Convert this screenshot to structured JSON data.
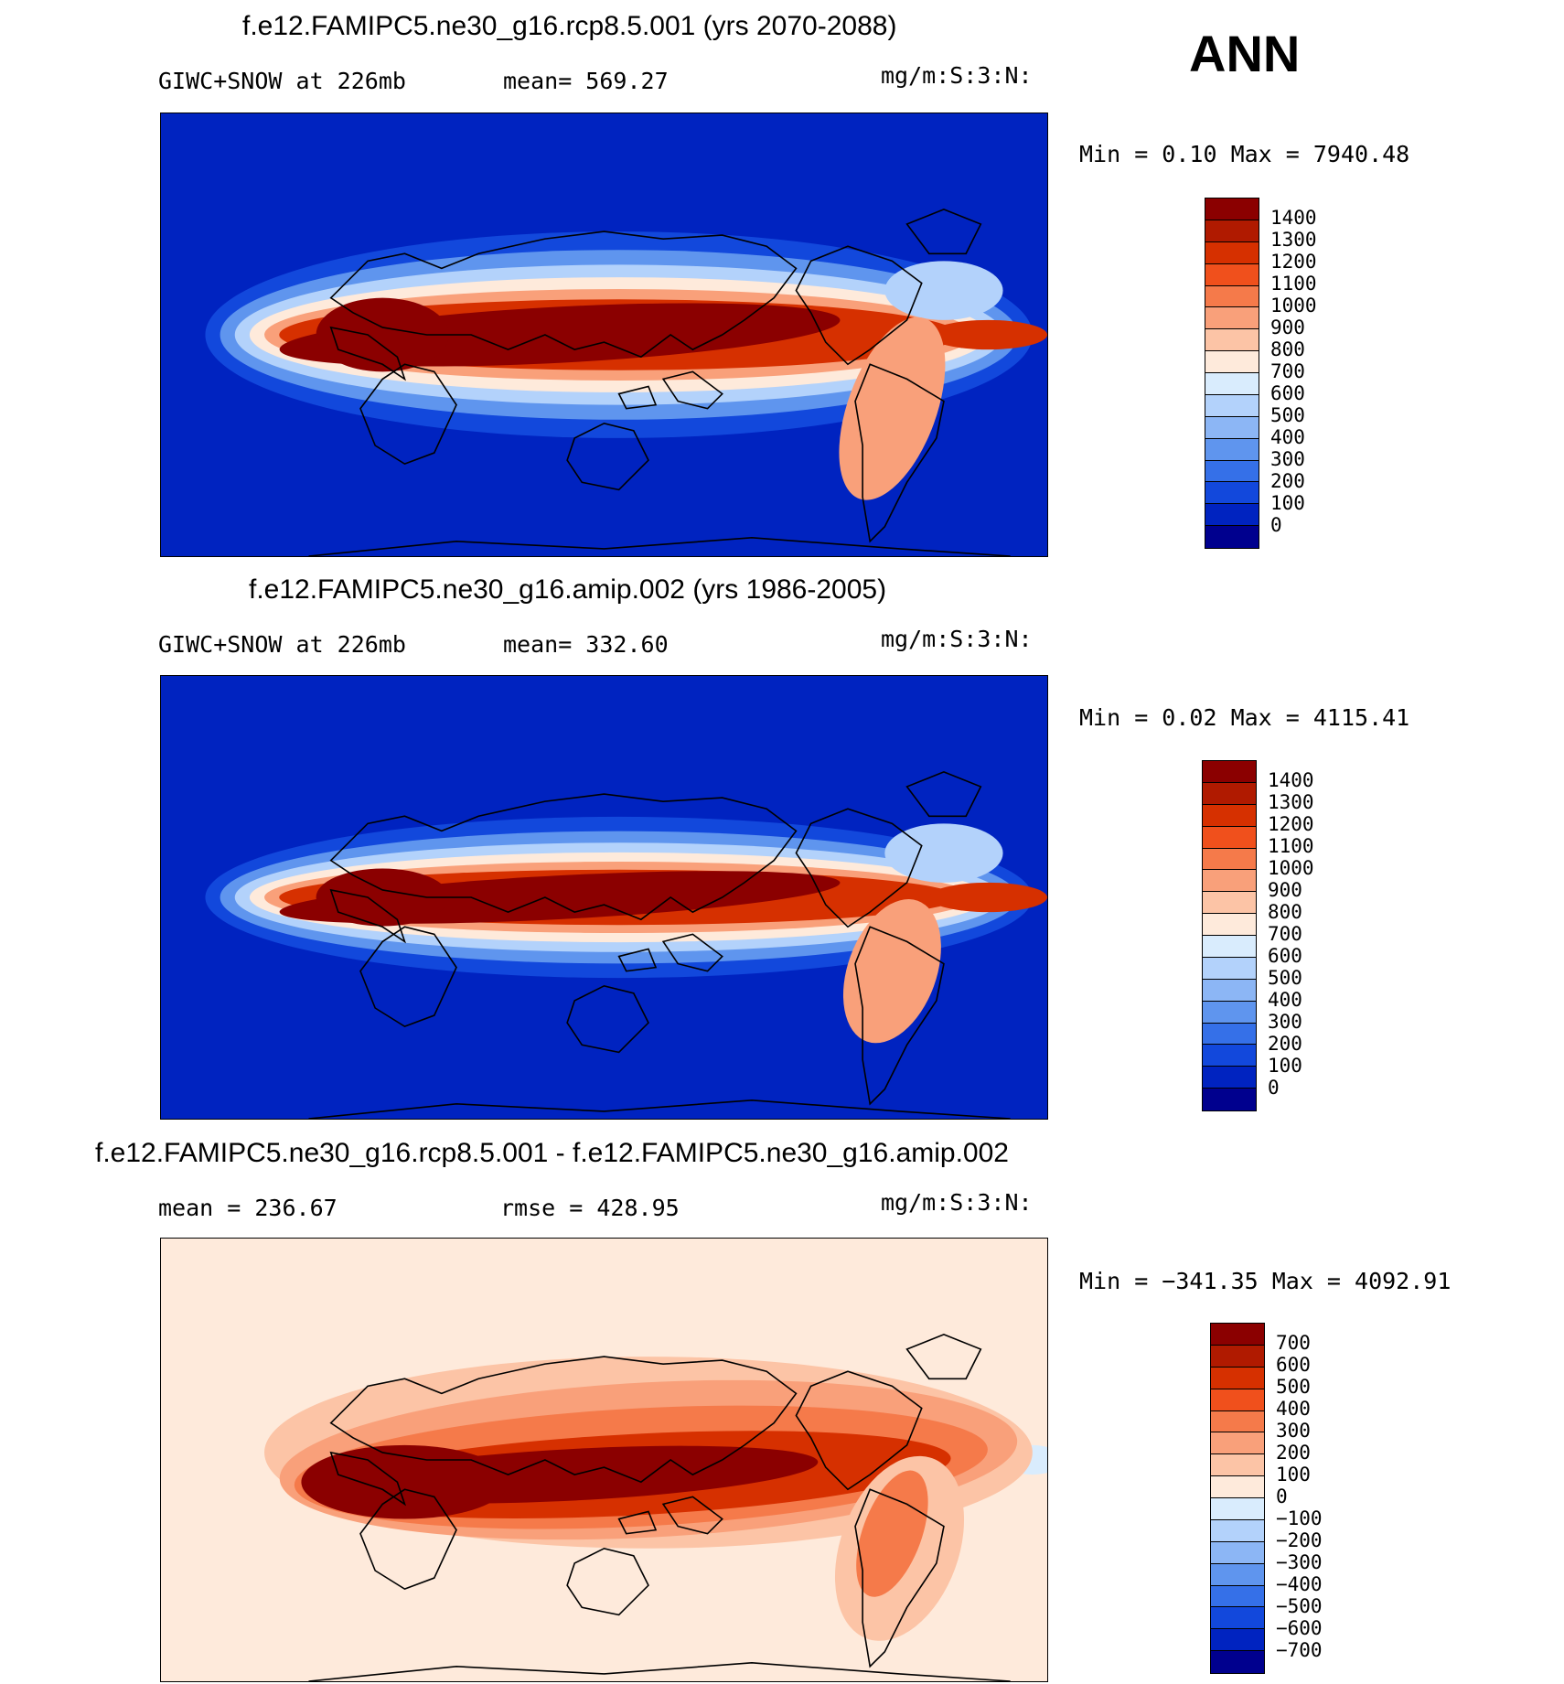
{
  "season_label": "ANN",
  "chart_data": [
    {
      "type": "heatmap",
      "title": "f.e12.FAMIPC5.ne30_g16.rcp8.5.001 (yrs 2070-2088)",
      "left_label": "GIWC+SNOW at 226mb",
      "mean_label": "mean= 569.27",
      "units": "mg/m:S:3:N:",
      "minmax": "Min =    0.10 Max = 7940.48",
      "colorbar_levels": [
        "1400",
        "1300",
        "1200",
        "1100",
        "1000",
        "900",
        "800",
        "700",
        "600",
        "500",
        "400",
        "300",
        "200",
        "100",
        "0"
      ],
      "colorbar_colors": [
        "#8b0000",
        "#b01a00",
        "#d63000",
        "#f0501c",
        "#f57a4a",
        "#f9a07a",
        "#fcc4a6",
        "#feeadb",
        "#d9ecfd",
        "#b3d2fb",
        "#8cb6f5",
        "#5f95ee",
        "#3570e8",
        "#1248dc",
        "#0023c0",
        "#00008e"
      ]
    },
    {
      "type": "heatmap",
      "title": "f.e12.FAMIPC5.ne30_g16.amip.002 (yrs 1986-2005)",
      "left_label": "GIWC+SNOW at 226mb",
      "mean_label": "mean= 332.60",
      "units": "mg/m:S:3:N:",
      "minmax": "Min =    0.02 Max = 4115.41",
      "colorbar_levels": [
        "1400",
        "1300",
        "1200",
        "1100",
        "1000",
        "900",
        "800",
        "700",
        "600",
        "500",
        "400",
        "300",
        "200",
        "100",
        "0"
      ],
      "colorbar_colors": [
        "#8b0000",
        "#b01a00",
        "#d63000",
        "#f0501c",
        "#f57a4a",
        "#f9a07a",
        "#fcc4a6",
        "#feeadb",
        "#d9ecfd",
        "#b3d2fb",
        "#8cb6f5",
        "#5f95ee",
        "#3570e8",
        "#1248dc",
        "#0023c0",
        "#00008e"
      ]
    },
    {
      "type": "heatmap",
      "title": "f.e12.FAMIPC5.ne30_g16.rcp8.5.001 - f.e12.FAMIPC5.ne30_g16.amip.002",
      "left_label": "mean =  236.67",
      "mean_label": "rmse =  428.95",
      "units": "mg/m:S:3:N:",
      "minmax": "Min = −341.35 Max = 4092.91",
      "colorbar_levels": [
        "700",
        "600",
        "500",
        "400",
        "300",
        "200",
        "100",
        "0",
        "−100",
        "−200",
        "−300",
        "−400",
        "−500",
        "−600",
        "−700"
      ],
      "colorbar_colors": [
        "#8b0000",
        "#b01a00",
        "#d63000",
        "#f0501c",
        "#f57a4a",
        "#f9a07a",
        "#fcc4a6",
        "#feeadb",
        "#d9ecfd",
        "#b3d2fb",
        "#8cb6f5",
        "#5f95ee",
        "#3570e8",
        "#1248dc",
        "#0023c0",
        "#00008e"
      ]
    }
  ]
}
